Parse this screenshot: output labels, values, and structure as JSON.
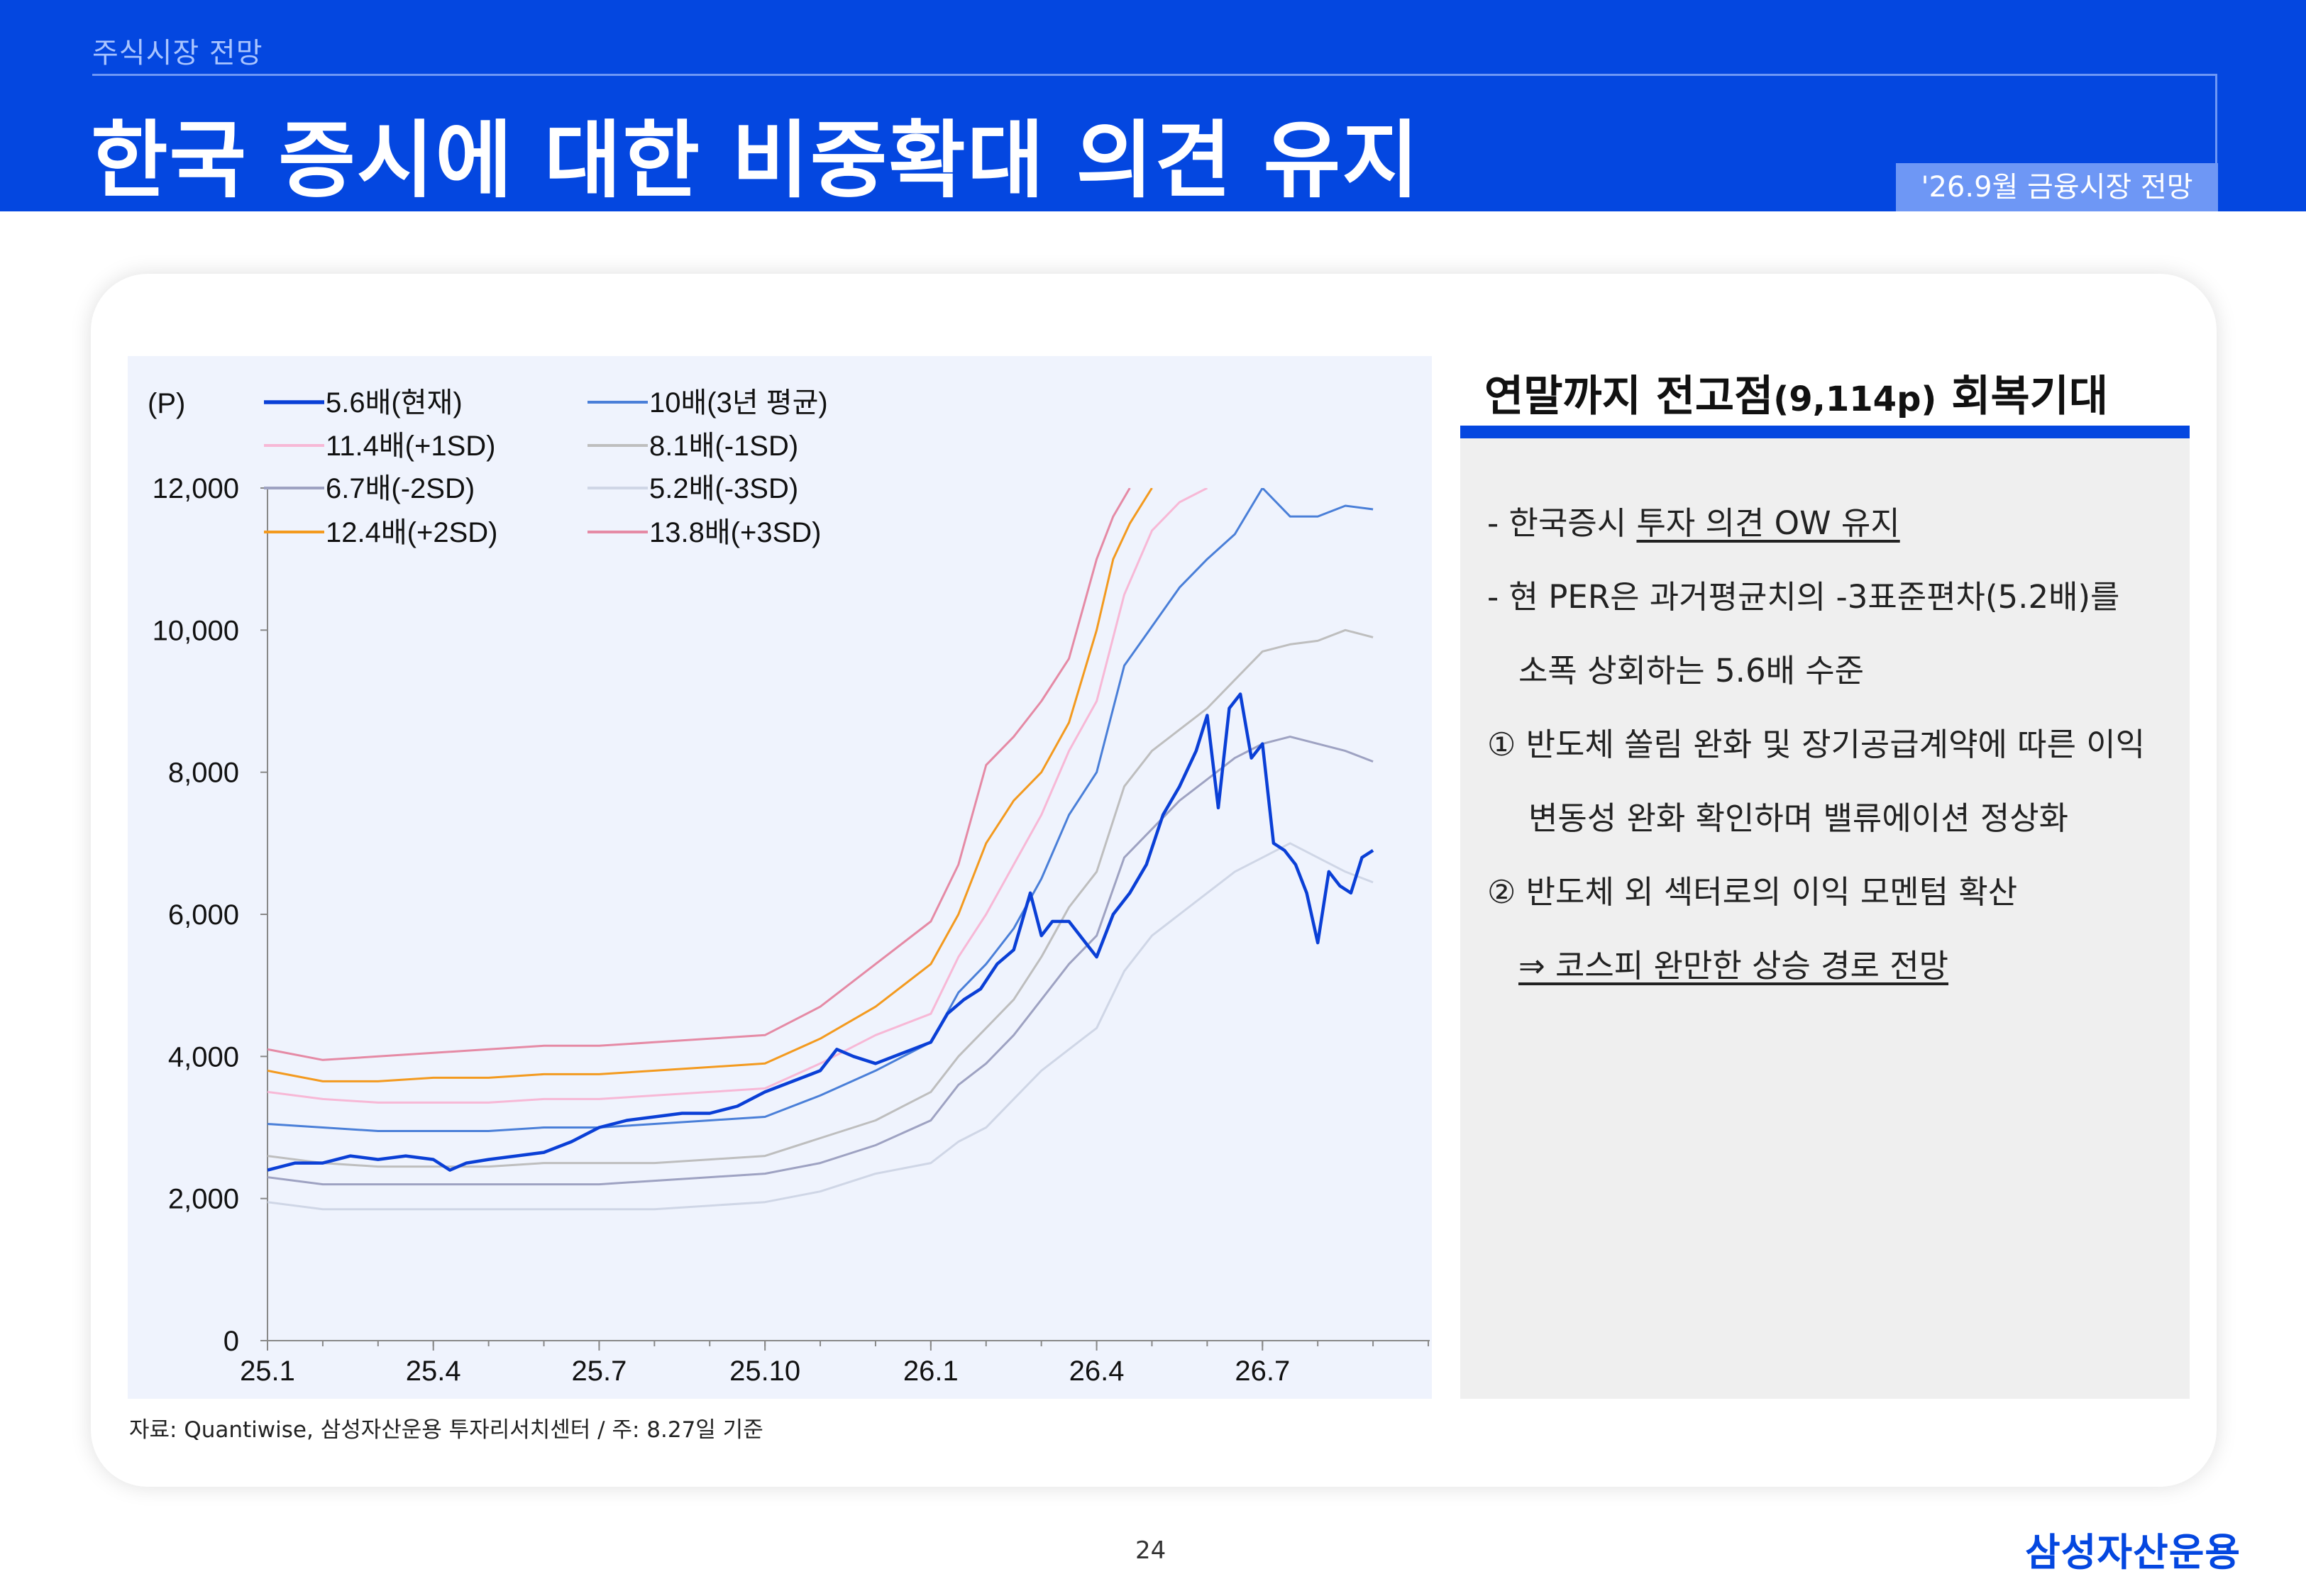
{
  "header": {
    "section_label": "주식시장 전망",
    "title": "한국 증시에 대한 비중확대 의견 유지",
    "report_tag": "'26.9월 금융시장 전망"
  },
  "source_note": "자료: Quantiwise, 삼성자산운용 투자리서치센터 / 주: 8.27일 기준",
  "side": {
    "title_main": "연말까지 전고점",
    "title_paren": "(9,114p)",
    "title_end": " 회복기대",
    "b1_prefix": "- 한국증시 ",
    "b1_underlined": "투자 의견 OW 유지",
    "b2_line1": "- 현 PER은 과거평균치의 -3표준편차(5.2배)를",
    "b2_line2": "소폭 상회하는 5.6배 수준",
    "b3_line1": "① 반도체 쏠림 완화 및 장기공급계약에 따른 이익",
    "b3_line2": "변동성 완화 확인하며 밸류에이션 정상화",
    "b4_line1": "② 반도체 외 섹터로의 이익 모멘텀 확산",
    "conclusion": "⇒  코스피 완만한 상승 경로 전망"
  },
  "footer": {
    "page_number": "24",
    "logo_text": "삼성자산운용"
  },
  "chart_data": {
    "type": "line",
    "y_unit_label": "(P)",
    "ylim": [
      0,
      12000
    ],
    "y_ticks": [
      0,
      2000,
      4000,
      6000,
      8000,
      10000,
      12000
    ],
    "y_tick_labels": [
      "0",
      "2,000",
      "4,000",
      "6,000",
      "8,000",
      "10,000",
      "12,000"
    ],
    "x_ticks": [
      "25.1",
      "25.4",
      "25.7",
      "25.10",
      "26.1",
      "26.4",
      "26.7"
    ],
    "x_tick_values": [
      0,
      3,
      6,
      9,
      12,
      15,
      18
    ],
    "xlim": [
      0,
      21
    ],
    "legend_position": "top-left",
    "grid": false,
    "series": [
      {
        "name": "5.6배(현재)",
        "color": "#0a3fd6",
        "width": 4.5,
        "x": [
          0,
          0.5,
          1,
          1.5,
          2,
          2.5,
          3,
          3.3,
          3.6,
          4,
          4.5,
          5,
          5.5,
          6,
          6.5,
          7,
          7.5,
          8,
          8.5,
          9,
          9.5,
          10,
          10.3,
          10.6,
          11,
          11.5,
          12,
          12.3,
          12.6,
          12.9,
          13.2,
          13.5,
          13.8,
          14,
          14.2,
          14.5,
          14.8,
          15,
          15.3,
          15.6,
          15.9,
          16.2,
          16.5,
          16.8,
          17,
          17.2,
          17.4,
          17.6,
          17.8,
          18,
          18.2,
          18.4,
          18.6,
          18.8,
          19,
          19.2,
          19.4,
          19.6,
          19.8,
          20
        ],
        "values": [
          2400,
          2500,
          2500,
          2600,
          2550,
          2600,
          2550,
          2400,
          2500,
          2550,
          2600,
          2650,
          2800,
          3000,
          3100,
          3150,
          3200,
          3200,
          3300,
          3500,
          3650,
          3800,
          4100,
          4000,
          3900,
          4050,
          4200,
          4600,
          4800,
          4950,
          5300,
          5500,
          6300,
          5700,
          5900,
          5900,
          5600,
          5400,
          6000,
          6300,
          6700,
          7400,
          7800,
          8300,
          8800,
          7500,
          8900,
          9100,
          8200,
          8400,
          7000,
          6900,
          6700,
          6300,
          5600,
          6600,
          6400,
          6300,
          6800,
          6900
        ]
      },
      {
        "name": "10배(3년 평균)",
        "color": "#4a7fd8",
        "width": 3,
        "x": [
          0,
          1,
          2,
          3,
          4,
          5,
          6,
          7,
          8,
          9,
          10,
          11,
          12,
          12.5,
          13,
          13.5,
          14,
          14.5,
          15,
          15.5,
          16,
          16.5,
          17,
          17.5,
          18,
          18.5,
          19,
          19.5,
          20
        ],
        "values": [
          3050,
          3000,
          2950,
          2950,
          2950,
          3000,
          3000,
          3050,
          3100,
          3150,
          3450,
          3800,
          4200,
          4900,
          5300,
          5800,
          6500,
          7400,
          8000,
          9500,
          10050,
          10600,
          11000,
          11350,
          12000,
          11600,
          11600,
          11750,
          11700
        ]
      },
      {
        "name": "11.4배(+1SD)",
        "color": "#f7b8d6",
        "width": 3,
        "x": [
          0,
          1,
          2,
          3,
          4,
          5,
          6,
          7,
          8,
          9,
          10,
          11,
          12,
          12.5,
          13,
          13.5,
          14,
          14.5,
          15,
          15.5,
          16,
          16.5,
          17
        ],
        "values": [
          3500,
          3400,
          3350,
          3350,
          3350,
          3400,
          3400,
          3450,
          3500,
          3550,
          3900,
          4300,
          4600,
          5400,
          6000,
          6700,
          7400,
          8300,
          9000,
          10500,
          11400,
          11800,
          12000
        ]
      },
      {
        "name": "8.1배(-1SD)",
        "color": "#bebebe",
        "width": 3,
        "x": [
          0,
          1,
          2,
          3,
          4,
          5,
          6,
          7,
          8,
          9,
          10,
          11,
          12,
          12.5,
          13,
          13.5,
          14,
          14.5,
          15,
          15.5,
          16,
          16.5,
          17,
          17.5,
          18,
          18.5,
          19,
          19.5,
          20
        ],
        "values": [
          2600,
          2500,
          2450,
          2450,
          2450,
          2500,
          2500,
          2500,
          2550,
          2600,
          2850,
          3100,
          3500,
          4000,
          4400,
          4800,
          5400,
          6100,
          6600,
          7800,
          8300,
          8600,
          8900,
          9300,
          9700,
          9800,
          9850,
          10000,
          9900
        ]
      },
      {
        "name": "6.7배(-2SD)",
        "color": "#9ea2c2",
        "width": 3,
        "x": [
          0,
          1,
          2,
          3,
          4,
          5,
          6,
          7,
          8,
          9,
          10,
          11,
          12,
          12.5,
          13,
          13.5,
          14,
          14.5,
          15,
          15.5,
          16,
          16.5,
          17,
          17.5,
          18,
          18.5,
          19,
          19.5,
          20
        ],
        "values": [
          2300,
          2200,
          2200,
          2200,
          2200,
          2200,
          2200,
          2250,
          2300,
          2350,
          2500,
          2750,
          3100,
          3600,
          3900,
          4300,
          4800,
          5300,
          5700,
          6800,
          7200,
          7600,
          7900,
          8200,
          8400,
          8500,
          8400,
          8300,
          8150
        ]
      },
      {
        "name": "5.2배(-3SD)",
        "color": "#cfd6e6",
        "width": 3,
        "x": [
          0,
          1,
          2,
          3,
          4,
          5,
          6,
          7,
          8,
          9,
          10,
          11,
          12,
          12.5,
          13,
          13.5,
          14,
          14.5,
          15,
          15.5,
          16,
          16.5,
          17,
          17.5,
          18,
          18.5,
          19,
          19.5,
          20
        ],
        "values": [
          1950,
          1850,
          1850,
          1850,
          1850,
          1850,
          1850,
          1850,
          1900,
          1950,
          2100,
          2350,
          2500,
          2800,
          3000,
          3400,
          3800,
          4100,
          4400,
          5200,
          5700,
          6000,
          6300,
          6600,
          6800,
          7000,
          6800,
          6600,
          6450
        ]
      },
      {
        "name": "12.4배(+2SD)",
        "color": "#f39a1f",
        "width": 3,
        "x": [
          0,
          1,
          2,
          3,
          4,
          5,
          6,
          7,
          8,
          9,
          10,
          11,
          12,
          12.5,
          13,
          13.5,
          14,
          14.5,
          15,
          15.3,
          15.6,
          16
        ],
        "values": [
          3800,
          3650,
          3650,
          3700,
          3700,
          3750,
          3750,
          3800,
          3850,
          3900,
          4250,
          4700,
          5300,
          6000,
          7000,
          7600,
          8000,
          8700,
          10000,
          11000,
          11500,
          12000
        ]
      },
      {
        "name": "13.8배(+3SD)",
        "color": "#e58aa5",
        "width": 3,
        "x": [
          0,
          1,
          2,
          3,
          4,
          5,
          6,
          7,
          8,
          9,
          10,
          11,
          12,
          12.5,
          13,
          13.5,
          14,
          14.5,
          15,
          15.3,
          15.6
        ],
        "values": [
          4100,
          3950,
          4000,
          4050,
          4100,
          4150,
          4150,
          4200,
          4250,
          4300,
          4700,
          5300,
          5900,
          6700,
          8100,
          8500,
          9000,
          9600,
          11000,
          11600,
          12000
        ]
      }
    ]
  }
}
